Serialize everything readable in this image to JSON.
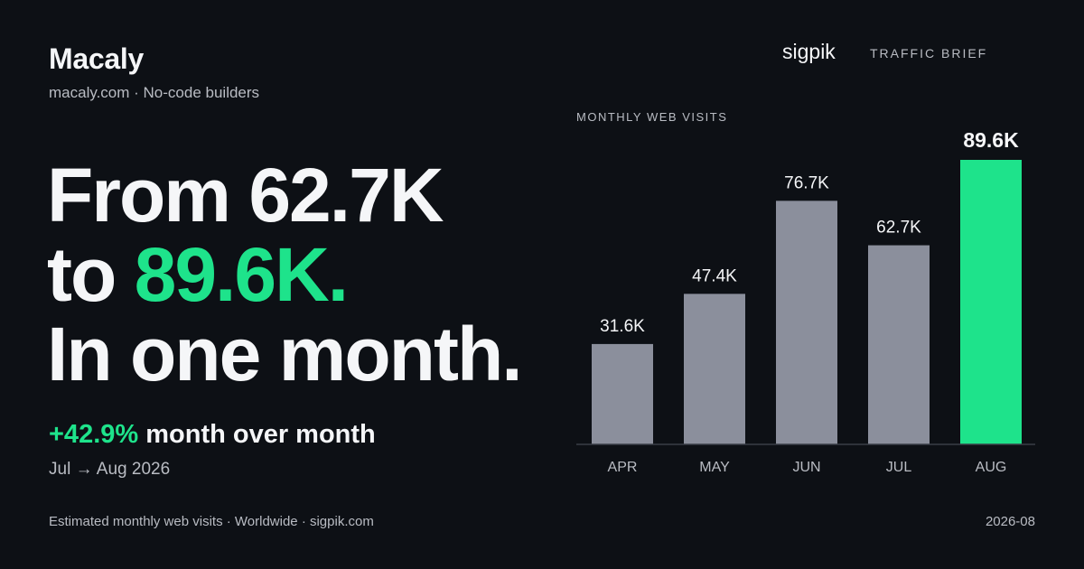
{
  "brand": {
    "name": "Macaly",
    "subtitle": "macaly.com · No-code builders"
  },
  "source": {
    "logo": "sigpik",
    "tag": "TRAFFIC BRIEF"
  },
  "headline": {
    "line1": "From 62.7K",
    "line2_prefix": "to ",
    "line2_accent": "89.6K.",
    "line3": "In one month."
  },
  "change": {
    "percent": "+42.9%",
    "label": " month over month",
    "period": "Jul → Aug 2026"
  },
  "footer": {
    "note": "Estimated monthly web visits · Worldwide · sigpik.com",
    "date": "2026-08"
  },
  "colors": {
    "accent": "#1ee38b",
    "bar": "#8b8f9c",
    "background": "#0d1015"
  },
  "chart_data": {
    "type": "bar",
    "title": "MONTHLY WEB VISITS",
    "categories": [
      "APR",
      "MAY",
      "JUN",
      "JUL",
      "AUG"
    ],
    "values": [
      31.6,
      47.4,
      76.7,
      62.7,
      89.6
    ],
    "labels": [
      "31.6K",
      "47.4K",
      "76.7K",
      "62.7K",
      "89.6K"
    ],
    "unit": "K",
    "highlight_index": 4,
    "ylim": [
      0,
      89.6
    ],
    "grid": false,
    "legend": "none"
  }
}
